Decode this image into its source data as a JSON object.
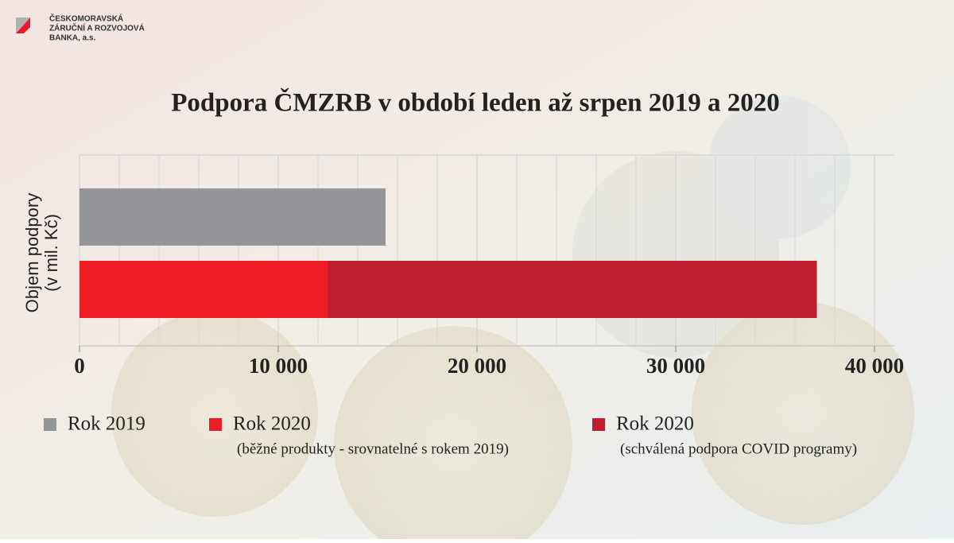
{
  "logo": {
    "lines": [
      "ČESKOMORAVSKÁ",
      "ZÁRUČNÍ A ROZVOJOVÁ",
      "BANKA, a.s."
    ]
  },
  "chart_data": {
    "type": "bar",
    "orientation": "horizontal",
    "stacked": true,
    "title": "Podpora ČMZRB v období leden až srpen 2019 a 2020",
    "ylabel": [
      "Objem podpory",
      "(v mil. Kč)"
    ],
    "categories": [
      null,
      null
    ],
    "series": [
      {
        "name": "Rok 2019",
        "color": "#939598",
        "values": [
          15400,
          null
        ]
      },
      {
        "name": "Rok 2020",
        "description": "(běžné produkty - srovnatelné s rokem 2019)",
        "color": "#ed1c24",
        "values": [
          null,
          12500
        ]
      },
      {
        "name": "Rok 2020",
        "description": "(schválená podpora COVID programy)",
        "color": "#be1e2d",
        "values": [
          null,
          24600
        ]
      }
    ],
    "xlim": [
      0,
      41000
    ],
    "xticks": [
      0,
      {
        "value": 10000,
        "label": "10 000"
      },
      {
        "value": 20000,
        "label": "20 000"
      },
      {
        "value": 30000,
        "label": "30 000"
      },
      {
        "value": 40000,
        "label": "40 000"
      }
    ],
    "xminorticks": [
      2000,
      4000,
      6000,
      8000,
      12000,
      14000,
      16000,
      18000,
      22000,
      24000,
      26000,
      28000,
      32000,
      34000,
      36000,
      38000
    ],
    "grid": true
  }
}
